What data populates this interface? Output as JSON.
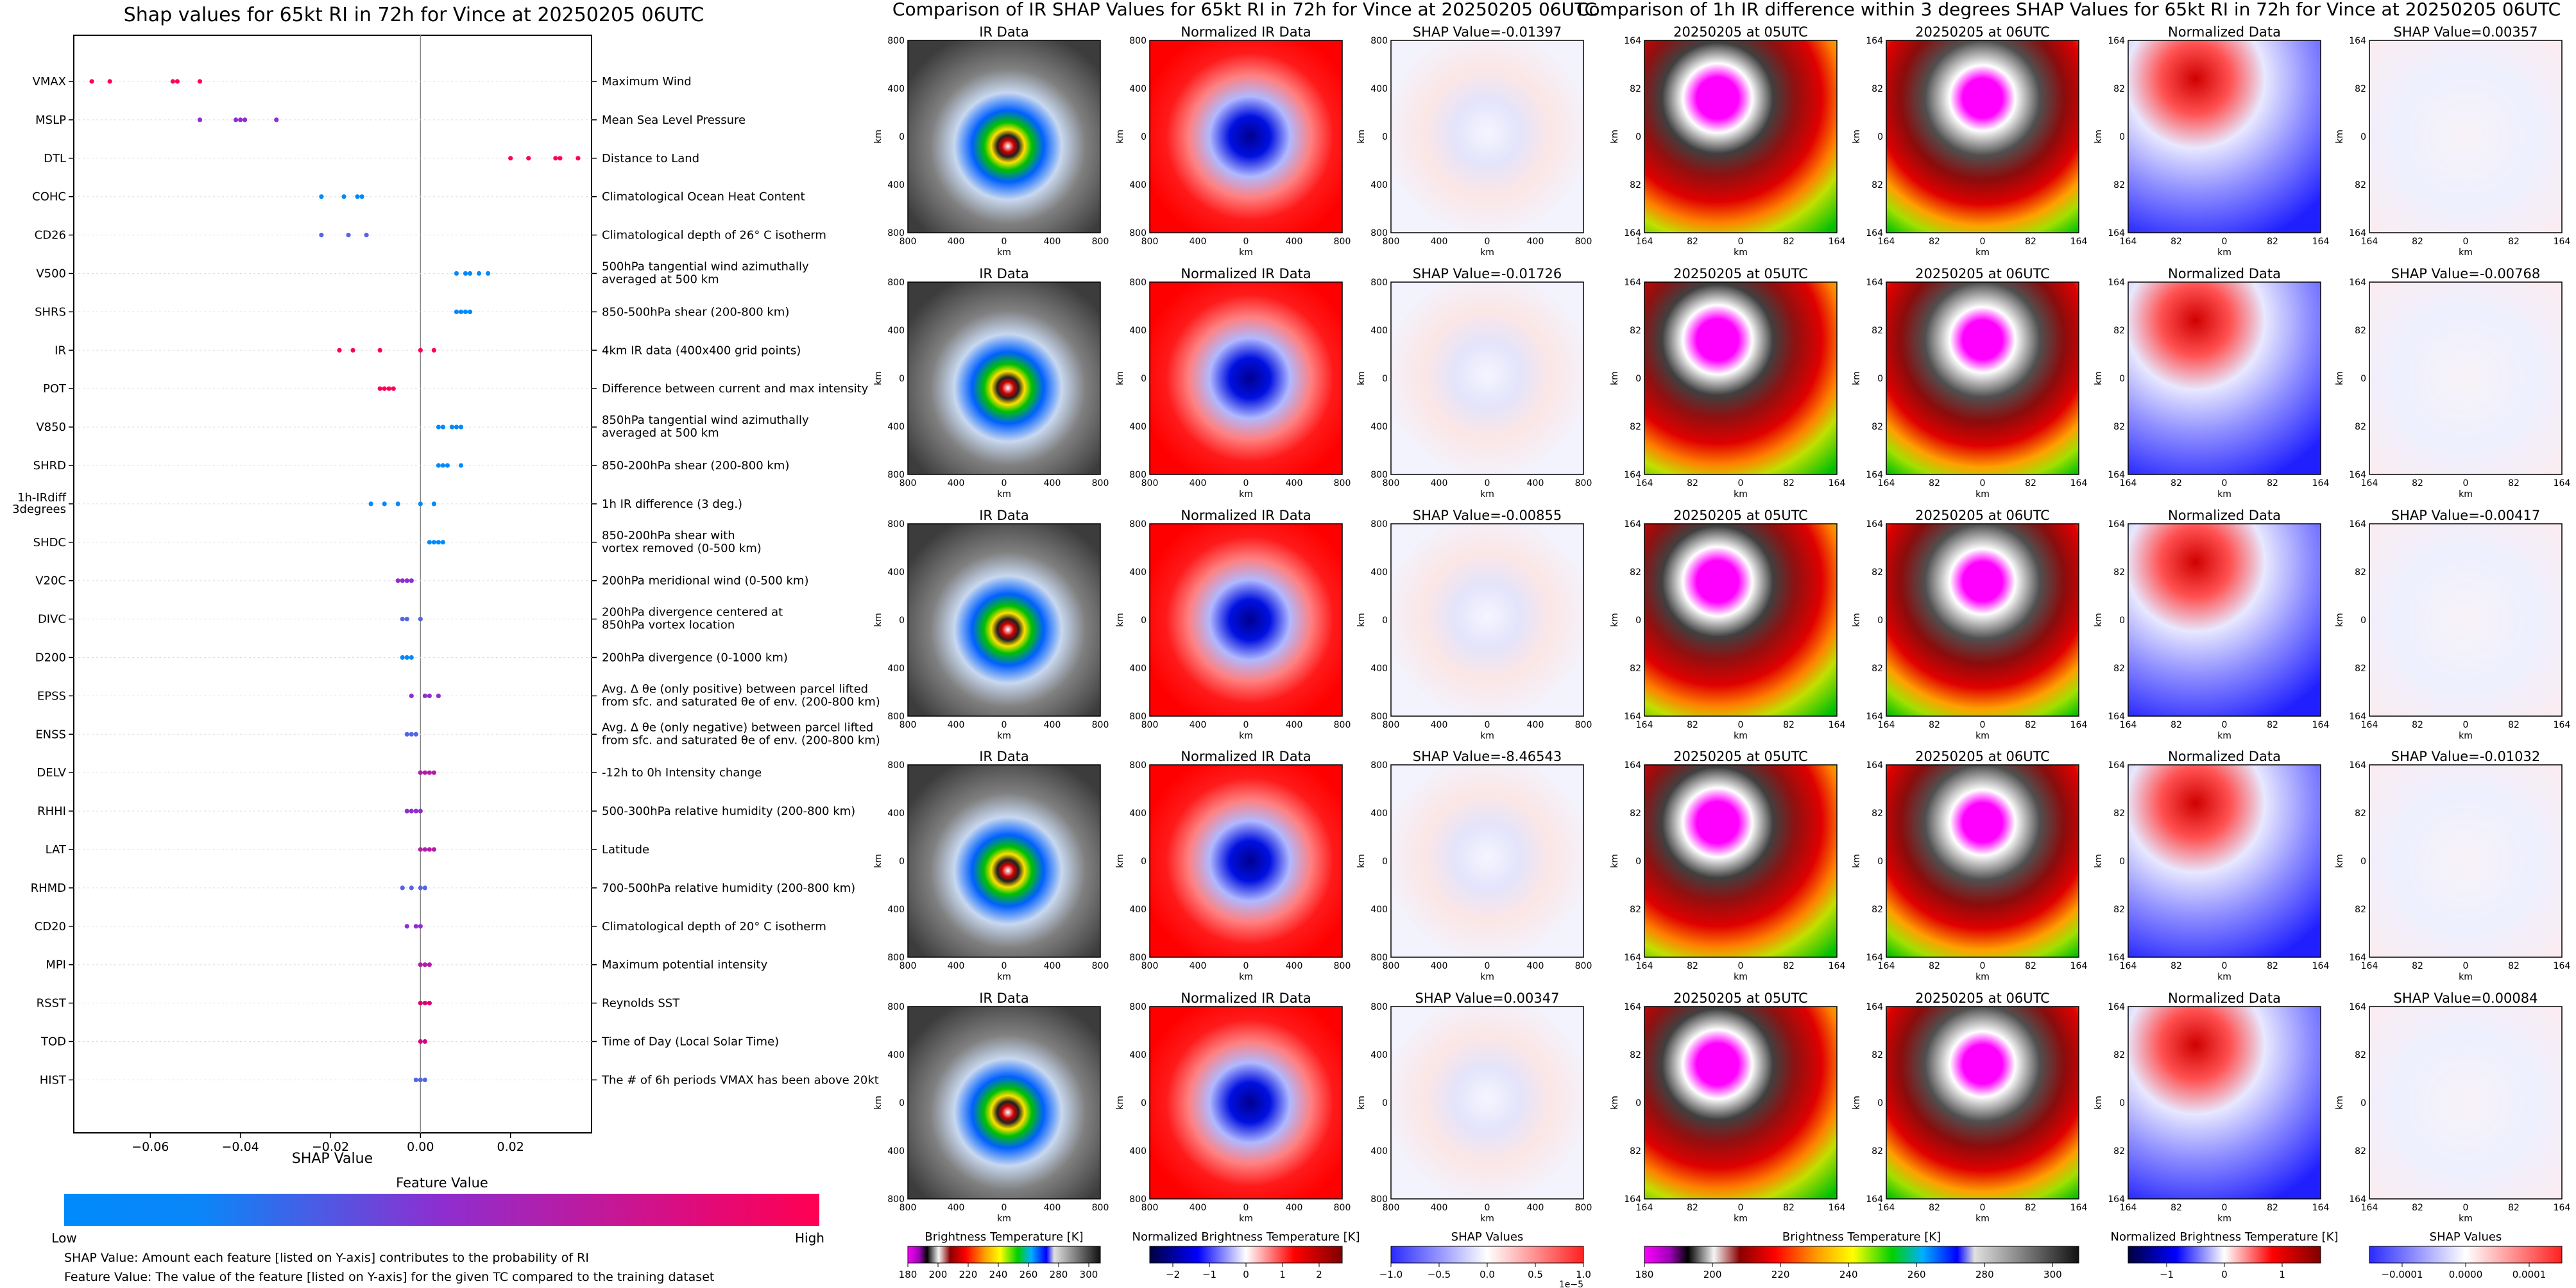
{
  "titles": {
    "shap_title": "Shap values for 65kt RI in 72h for Vince at 20250205 06UTC",
    "ir_title": "Comparison of IR SHAP Values for 65kt RI in 72h for Vince at 20250205 06UTC",
    "diff_title": "Comparison of 1h IR difference within 3 degrees SHAP Values for 65kt RI in 72h for Vince at 20250205 06UTC"
  },
  "colors": {
    "shap_low": "#008afb",
    "shap_mid": "#8e2ecf",
    "shap_high": "#ff0052"
  },
  "chart_data": [
    {
      "type": "scatter",
      "title": "Shap values for 65kt RI in 72h for Vince at 20250205 06UTC",
      "xlabel": "SHAP Value",
      "xlim": [
        -0.077,
        0.038
      ],
      "xticks": [
        -0.06,
        -0.04,
        -0.02,
        0.0,
        0.02
      ],
      "tick_labels": [
        "−0.06",
        "−0.04",
        "−0.02",
        "0.00",
        "0.02"
      ],
      "features": [
        {
          "name": "VMAX",
          "desc": [
            "Maximum Wind"
          ],
          "color": "#ff0052",
          "points": [
            -0.073,
            -0.069,
            -0.055,
            -0.054,
            -0.049
          ]
        },
        {
          "name": "MSLP",
          "desc": [
            "Mean Sea Level Pressure"
          ],
          "color": "#8e2ecf",
          "points": [
            -0.049,
            -0.041,
            -0.04,
            -0.039,
            -0.032
          ]
        },
        {
          "name": "DTL",
          "desc": [
            "Distance to Land"
          ],
          "color": "#ff0052",
          "points": [
            0.02,
            0.024,
            0.03,
            0.031,
            0.035
          ]
        },
        {
          "name": "COHC",
          "desc": [
            "Climatological Ocean Heat Content"
          ],
          "color": "#008afb",
          "points": [
            -0.022,
            -0.017,
            -0.014,
            -0.013
          ]
        },
        {
          "name": "CD26",
          "desc": [
            "Climatological depth of 26° C isotherm"
          ],
          "color": "#5266e6",
          "points": [
            -0.022,
            -0.016,
            -0.012
          ]
        },
        {
          "name": "V500",
          "desc": [
            "500hPa tangential wind azimuthally",
            "averaged at 500 km"
          ],
          "color": "#008afb",
          "points": [
            0.008,
            0.01,
            0.011,
            0.013,
            0.015
          ]
        },
        {
          "name": "SHRS",
          "desc": [
            "850-500hPa shear (200-800 km)"
          ],
          "color": "#008afb",
          "points": [
            0.008,
            0.009,
            0.01,
            0.011
          ]
        },
        {
          "name": "IR",
          "desc": [
            "4km IR data (400x400 grid points)"
          ],
          "color": "#ff0052",
          "points": [
            -0.018,
            -0.015,
            -0.009,
            0.0,
            0.003
          ]
        },
        {
          "name": "POT",
          "desc": [
            "Difference between current and max intensity"
          ],
          "color": "#ff0052",
          "points": [
            -0.009,
            -0.008,
            -0.007,
            -0.006
          ]
        },
        {
          "name": "V850",
          "desc": [
            "850hPa tangential wind azimuthally",
            "averaged at 500 km"
          ],
          "color": "#008afb",
          "points": [
            0.004,
            0.005,
            0.007,
            0.008,
            0.009
          ]
        },
        {
          "name": "SHRD",
          "desc": [
            "850-200hPa shear (200-800 km)"
          ],
          "color": "#008afb",
          "points": [
            0.004,
            0.005,
            0.006,
            0.009
          ]
        },
        {
          "name": "1h-IRdiff 3degrees",
          "desc": [
            "1h IR difference (3 deg.)"
          ],
          "color": "#008afb",
          "points": [
            -0.011,
            -0.008,
            -0.005,
            0.0,
            0.003
          ]
        },
        {
          "name": "SHDC",
          "desc": [
            "850-200hPa shear with",
            "vortex removed (0-500 km)"
          ],
          "color": "#008afb",
          "points": [
            0.002,
            0.003,
            0.004,
            0.005
          ]
        },
        {
          "name": "V20C",
          "desc": [
            "200hPa meridional wind (0-500 km)"
          ],
          "color": "#8e2ecf",
          "points": [
            -0.005,
            -0.004,
            -0.003,
            -0.002
          ]
        },
        {
          "name": "DIVC",
          "desc": [
            "200hPa divergence centered at",
            "850hPa vortex location"
          ],
          "color": "#5266e6",
          "points": [
            -0.004,
            -0.003,
            0.0
          ]
        },
        {
          "name": "D200",
          "desc": [
            "200hPa divergence (0-1000 km)"
          ],
          "color": "#008afb",
          "points": [
            -0.004,
            -0.003,
            -0.002
          ]
        },
        {
          "name": "EPSS",
          "desc": [
            "Avg. Δ θe (only positive) between parcel lifted",
            "from sfc. and saturated θe of env. (200-800 km)"
          ],
          "color": "#8e2ecf",
          "points": [
            -0.002,
            0.001,
            0.002,
            0.004
          ]
        },
        {
          "name": "ENSS",
          "desc": [
            "Avg. Δ θe (only negative) between parcel lifted",
            "from sfc. and saturated θe of env. (200-800 km)"
          ],
          "color": "#5266e6",
          "points": [
            -0.003,
            -0.002,
            -0.001
          ]
        },
        {
          "name": "DELV",
          "desc": [
            "-12h to 0h Intensity change"
          ],
          "color": "#b21ca7",
          "points": [
            0.0,
            0.001,
            0.002,
            0.003
          ]
        },
        {
          "name": "RHHI",
          "desc": [
            "500-300hPa relative humidity (200-800 km)"
          ],
          "color": "#8e2ecf",
          "points": [
            -0.003,
            -0.002,
            -0.001,
            0.0
          ]
        },
        {
          "name": "LAT",
          "desc": [
            "Latitude"
          ],
          "color": "#b21ca7",
          "points": [
            0.0,
            0.001,
            0.002,
            0.003
          ]
        },
        {
          "name": "RHMD",
          "desc": [
            "700-500hPa relative humidity (200-800 km)"
          ],
          "color": "#5266e6",
          "points": [
            -0.004,
            -0.002,
            0.0,
            0.001
          ]
        },
        {
          "name": "CD20",
          "desc": [
            "Climatological depth of 20° C isotherm"
          ],
          "color": "#8e2ecf",
          "points": [
            -0.003,
            -0.001,
            0.0
          ]
        },
        {
          "name": "MPI",
          "desc": [
            "Maximum potential intensity"
          ],
          "color": "#b21ca7",
          "points": [
            0.0,
            0.001,
            0.002
          ]
        },
        {
          "name": "RSST",
          "desc": [
            "Reynolds SST"
          ],
          "color": "#e0006e",
          "points": [
            0.0,
            0.001,
            0.002
          ]
        },
        {
          "name": "TOD",
          "desc": [
            "Time of Day (Local Solar Time)"
          ],
          "color": "#d7007f",
          "points": [
            0.0,
            0.001
          ]
        },
        {
          "name": "HIST",
          "desc": [
            "The # of 6h periods VMAX has been above 20kt"
          ],
          "color": "#5266e6",
          "points": [
            -0.001,
            0.0,
            0.001
          ]
        }
      ],
      "colorbar": {
        "label": "Feature Value",
        "low": "Low",
        "high": "High"
      },
      "notes": [
        "SHAP Value: Amount each feature [listed on Y-axis] contributes to the probability of RI",
        "Feature Value: The value of the feature [listed on Y-axis] for the given TC compared to the training dataset"
      ]
    },
    {
      "type": "heatmap",
      "title": "Comparison of IR SHAP Values for 65kt RI in 72h for Vince at 20250205 06UTC",
      "panel_titles": [
        "IR Data",
        "Normalized IR Data"
      ],
      "shap_titles": [
        "SHAP Value=-0.01397",
        "SHAP Value=-0.01726",
        "SHAP Value=-0.00855",
        "SHAP Value=-8.46543",
        "SHAP Value=0.00347"
      ],
      "axis_label": "km",
      "ticks": [
        "800",
        "400",
        "0",
        "400",
        "800"
      ],
      "colorbars": [
        {
          "label": "Brightness Temperature [K]",
          "ticks": [
            "180",
            "200",
            "220",
            "240",
            "260",
            "280",
            "300"
          ],
          "offset": ""
        },
        {
          "label": "Normalized Brightness Temperature [K]",
          "ticks": [
            "−2",
            "−1",
            "0",
            "1",
            "2"
          ],
          "offset": ""
        },
        {
          "label": "SHAP Values",
          "ticks": [
            "−1.0",
            "−0.5",
            "0.0",
            "0.5",
            "1.0"
          ],
          "offset": "1e−5"
        }
      ]
    },
    {
      "type": "heatmap",
      "title": "Comparison of 1h IR difference within 3 degrees SHAP Values for 65kt RI in 72h for Vince at 20250205 06UTC",
      "panel_titles": [
        "20250205 at 05UTC",
        "20250205 at 06UTC",
        "Normalized Data"
      ],
      "shap_titles": [
        "SHAP Value=0.00357",
        "SHAP Value=-0.00768",
        "SHAP Value=-0.00417",
        "SHAP Value=-0.01032",
        "SHAP Value=0.00084"
      ],
      "axis_label": "km",
      "ticks": [
        "164",
        "82",
        "0",
        "82",
        "164"
      ],
      "colorbars": [
        {
          "label": "Brightness Temperature [K]",
          "ticks": [
            "180",
            "200",
            "220",
            "240",
            "260",
            "280",
            "300"
          ],
          "offset": ""
        },
        {
          "label": "Normalized Brightness Temperature [K]",
          "ticks": [
            "−1",
            "0",
            "1"
          ],
          "offset": ""
        },
        {
          "label": "SHAP Values",
          "ticks": [
            "−0.0001",
            "0.0000",
            "0.0001"
          ],
          "offset": ""
        }
      ]
    }
  ]
}
